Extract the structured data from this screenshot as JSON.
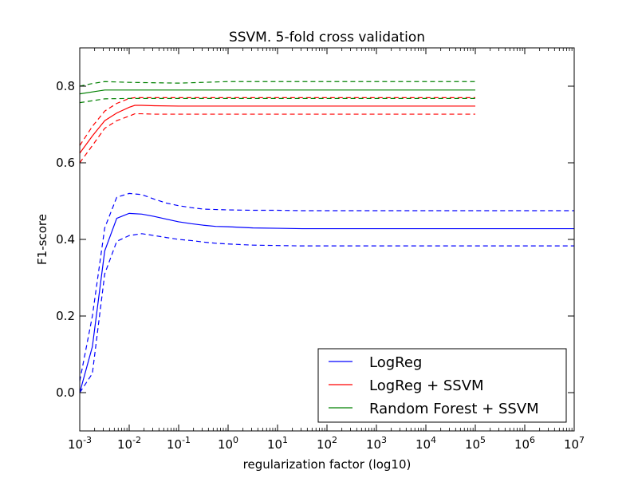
{
  "chart_data": {
    "type": "line",
    "title": "SSVM. 5-fold cross validation",
    "xlabel": "regularization factor (log10)",
    "ylabel": "F1-score",
    "x_scale": "log",
    "xlim": [
      0.001,
      10000000
    ],
    "ylim": [
      -0.1,
      0.9
    ],
    "x_ticks": [
      {
        "value": 0.001,
        "base": "10",
        "exp": "-3"
      },
      {
        "value": 0.01,
        "base": "10",
        "exp": "-2"
      },
      {
        "value": 0.1,
        "base": "10",
        "exp": "-1"
      },
      {
        "value": 1,
        "base": "10",
        "exp": "0"
      },
      {
        "value": 10,
        "base": "10",
        "exp": "1"
      },
      {
        "value": 100,
        "base": "10",
        "exp": "2"
      },
      {
        "value": 1000,
        "base": "10",
        "exp": "3"
      },
      {
        "value": 10000,
        "base": "10",
        "exp": "4"
      },
      {
        "value": 100000,
        "base": "10",
        "exp": "5"
      },
      {
        "value": 1000000,
        "base": "10",
        "exp": "6"
      },
      {
        "value": 10000000,
        "base": "10",
        "exp": "7"
      }
    ],
    "y_ticks": [
      {
        "value": 0.0,
        "label": "0.0"
      },
      {
        "value": 0.2,
        "label": "0.2"
      },
      {
        "value": 0.4,
        "label": "0.4"
      },
      {
        "value": 0.6,
        "label": "0.6"
      },
      {
        "value": 0.8,
        "label": "0.8"
      }
    ],
    "grid": false,
    "legend_position": "lower-right",
    "series": [
      {
        "name": "LogReg",
        "color": "#0000ff",
        "x": [
          0.001,
          0.0018,
          0.0032,
          0.0056,
          0.01,
          0.018,
          0.032,
          0.056,
          0.1,
          0.18,
          0.32,
          0.56,
          1,
          3.2,
          10,
          31.6,
          100,
          1000,
          10000,
          100000,
          1000000,
          10000000
        ],
        "mean": [
          0.0,
          0.12,
          0.37,
          0.455,
          0.468,
          0.466,
          0.46,
          0.453,
          0.446,
          0.441,
          0.437,
          0.434,
          0.433,
          0.43,
          0.429,
          0.428,
          0.428,
          0.428,
          0.428,
          0.428,
          0.428,
          0.428
        ],
        "upper": [
          0.03,
          0.2,
          0.43,
          0.51,
          0.52,
          0.517,
          0.505,
          0.495,
          0.488,
          0.483,
          0.479,
          0.478,
          0.477,
          0.476,
          0.476,
          0.475,
          0.475,
          0.475,
          0.475,
          0.475,
          0.475,
          0.475
        ],
        "lower": [
          0.0,
          0.05,
          0.31,
          0.395,
          0.41,
          0.415,
          0.41,
          0.405,
          0.4,
          0.397,
          0.393,
          0.39,
          0.388,
          0.385,
          0.384,
          0.383,
          0.383,
          0.383,
          0.383,
          0.383,
          0.383,
          0.383
        ]
      },
      {
        "name": "LogReg + SSVM",
        "color": "#ff0000",
        "x": [
          0.001,
          0.0018,
          0.0032,
          0.0056,
          0.01,
          0.013,
          0.018,
          0.032,
          0.1,
          1,
          10,
          100,
          1000,
          10000,
          100000
        ],
        "mean": [
          0.625,
          0.67,
          0.71,
          0.73,
          0.745,
          0.75,
          0.75,
          0.749,
          0.748,
          0.748,
          0.748,
          0.748,
          0.748,
          0.748,
          0.748
        ],
        "upper": [
          0.645,
          0.695,
          0.735,
          0.755,
          0.768,
          0.77,
          0.77,
          0.77,
          0.77,
          0.77,
          0.77,
          0.77,
          0.77,
          0.77,
          0.77
        ],
        "lower": [
          0.6,
          0.645,
          0.69,
          0.71,
          0.722,
          0.728,
          0.728,
          0.727,
          0.727,
          0.727,
          0.727,
          0.727,
          0.727,
          0.727,
          0.727
        ]
      },
      {
        "name": "Random Forest + SSVM",
        "color": "#008000",
        "x": [
          0.001,
          0.0018,
          0.0032,
          0.01,
          0.1,
          1,
          10,
          100,
          1000,
          10000,
          100000
        ],
        "mean": [
          0.78,
          0.785,
          0.79,
          0.79,
          0.79,
          0.79,
          0.79,
          0.79,
          0.79,
          0.79,
          0.79
        ],
        "upper": [
          0.8,
          0.807,
          0.812,
          0.81,
          0.808,
          0.812,
          0.812,
          0.812,
          0.812,
          0.812,
          0.812
        ],
        "lower": [
          0.757,
          0.762,
          0.767,
          0.768,
          0.768,
          0.768,
          0.768,
          0.768,
          0.768,
          0.768,
          0.768
        ]
      }
    ]
  }
}
